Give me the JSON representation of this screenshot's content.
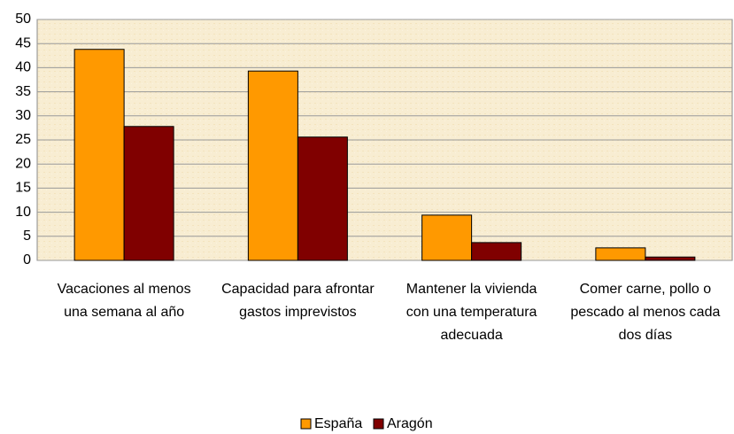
{
  "chart_data": {
    "type": "bar",
    "categories": [
      "Vacaciones al menos una semana al año",
      "Capacidad para afrontar gastos imprevistos",
      "Mantener la vivienda con una temperatura adecuada",
      "Comer carne, pollo o pescado al menos cada dos días"
    ],
    "series": [
      {
        "name": "España",
        "color": "#ff9900",
        "values": [
          43.8,
          39.3,
          9.4,
          2.6
        ]
      },
      {
        "name": "Aragón",
        "color": "#800000",
        "values": [
          27.8,
          25.6,
          3.7,
          0.7
        ]
      }
    ],
    "ylim": [
      0,
      50
    ],
    "yticks": [
      0,
      5,
      10,
      15,
      20,
      25,
      30,
      35,
      40,
      45,
      50
    ],
    "grid": true,
    "legend": "bottom"
  }
}
